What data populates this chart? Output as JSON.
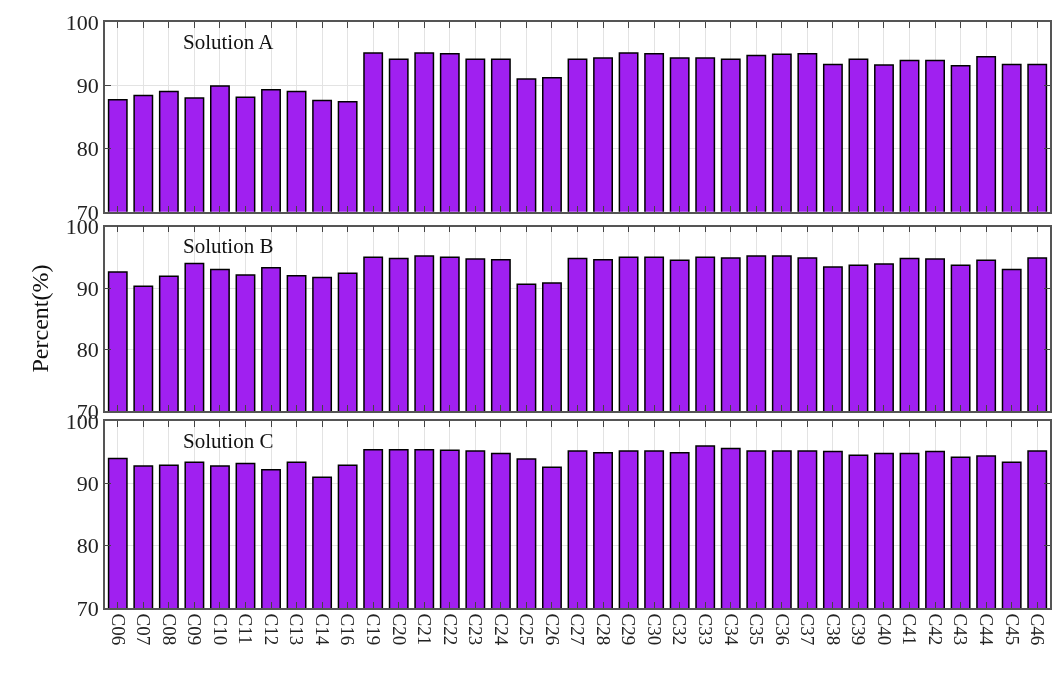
{
  "chart_data": [
    {
      "type": "bar",
      "categories": [
        "C06",
        "C07",
        "C08",
        "C09",
        "C10",
        "C11",
        "C12",
        "C13",
        "C14",
        "C16",
        "C19",
        "C20",
        "C21",
        "C22",
        "C23",
        "C24",
        "C25",
        "C26",
        "C27",
        "C28",
        "C29",
        "C30",
        "C32",
        "C33",
        "C34",
        "C35",
        "C36",
        "C37",
        "C38",
        "C39",
        "C40",
        "C41",
        "C42",
        "C43",
        "C44",
        "C45",
        "C46"
      ],
      "values": [
        87.7,
        88.4,
        89.0,
        88.0,
        89.9,
        88.1,
        89.3,
        89.0,
        87.6,
        87.4,
        95.1,
        94.1,
        95.1,
        95.0,
        94.1,
        94.1,
        91.0,
        91.2,
        94.1,
        94.3,
        95.1,
        95.0,
        94.3,
        94.3,
        94.1,
        94.7,
        94.9,
        95.0,
        93.3,
        94.1,
        93.2,
        93.9,
        93.9,
        93.1,
        94.5,
        93.3,
        93.3
      ],
      "color": "#a020f0",
      "ylim": [
        70,
        100
      ],
      "yticks": [
        70,
        80,
        90,
        100
      ],
      "grid": true,
      "tick_labels": "y",
      "annotations": [
        "Solution A"
      ]
    },
    {
      "type": "bar",
      "categories": [
        "C06",
        "C07",
        "C08",
        "C09",
        "C10",
        "C11",
        "C12",
        "C13",
        "C14",
        "C16",
        "C19",
        "C20",
        "C21",
        "C22",
        "C23",
        "C24",
        "C25",
        "C26",
        "C27",
        "C28",
        "C29",
        "C30",
        "C32",
        "C33",
        "C34",
        "C35",
        "C36",
        "C37",
        "C38",
        "C39",
        "C40",
        "C41",
        "C42",
        "C43",
        "C44",
        "C45",
        "C46"
      ],
      "values": [
        92.6,
        90.3,
        91.9,
        94.0,
        93.0,
        92.1,
        93.3,
        92.0,
        91.7,
        92.4,
        95.0,
        94.8,
        95.2,
        95.0,
        94.7,
        94.6,
        90.6,
        90.8,
        94.8,
        94.6,
        95.0,
        95.0,
        94.5,
        95.0,
        94.9,
        95.2,
        95.2,
        94.9,
        93.4,
        93.7,
        93.9,
        94.8,
        94.7,
        93.7,
        94.5,
        93.0,
        94.9
      ],
      "color": "#a020f0",
      "ylim": [
        70,
        100
      ],
      "yticks": [
        70,
        80,
        90,
        100
      ],
      "grid": true,
      "tick_labels": "y",
      "ylabel": "Percent(%)",
      "annotations": [
        "Solution B"
      ]
    },
    {
      "type": "bar",
      "categories": [
        "C06",
        "C07",
        "C08",
        "C09",
        "C10",
        "C11",
        "C12",
        "C13",
        "C14",
        "C16",
        "C19",
        "C20",
        "C21",
        "C22",
        "C23",
        "C24",
        "C25",
        "C26",
        "C27",
        "C28",
        "C29",
        "C30",
        "C32",
        "C33",
        "C34",
        "C35",
        "C36",
        "C37",
        "C38",
        "C39",
        "C40",
        "C41",
        "C42",
        "C43",
        "C44",
        "C45",
        "C46"
      ],
      "values": [
        94.0,
        92.8,
        92.9,
        93.4,
        92.8,
        93.2,
        92.2,
        93.4,
        91.0,
        92.9,
        95.4,
        95.4,
        95.4,
        95.3,
        95.2,
        94.8,
        93.9,
        92.6,
        95.2,
        94.9,
        95.2,
        95.2,
        94.9,
        96.0,
        95.6,
        95.2,
        95.2,
        95.2,
        95.1,
        94.5,
        94.8,
        94.8,
        95.1,
        94.2,
        94.4,
        93.4,
        95.2
      ],
      "color": "#a020f0",
      "ylim": [
        70,
        100
      ],
      "yticks": [
        70,
        80,
        90,
        100
      ],
      "grid": true,
      "annotations": [
        "Solution C"
      ]
    }
  ]
}
